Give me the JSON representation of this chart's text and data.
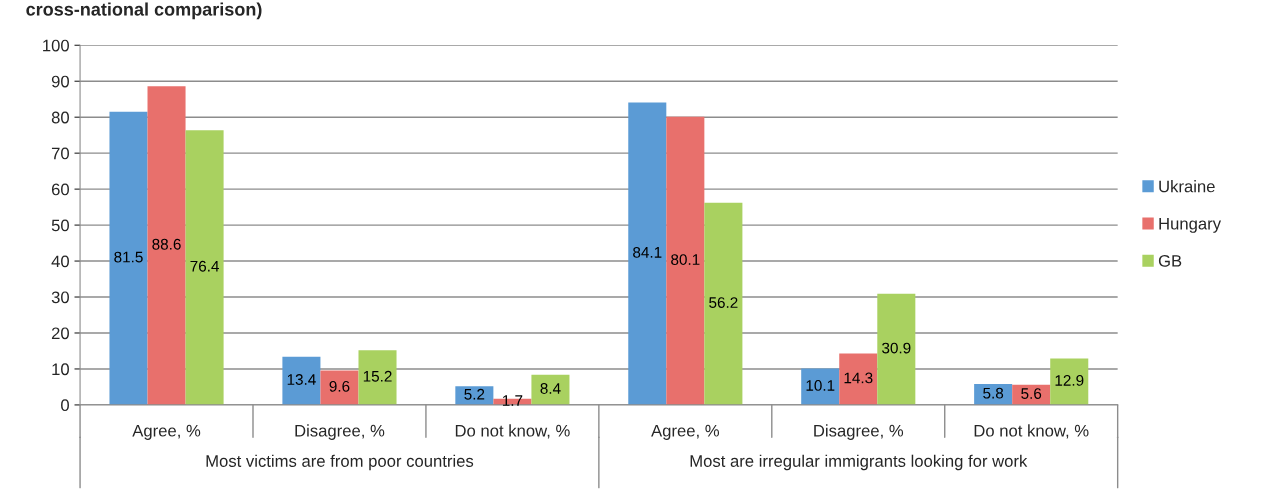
{
  "chart_data": {
    "type": "bar",
    "title": "cross-national comparison)",
    "categories": [
      "Agree, %",
      "Disagree, %",
      "Do not know, %",
      "Agree, %",
      "Disagree, %",
      "Do not know, %"
    ],
    "series": [
      {
        "name": "Ukraine",
        "color": "#5b9bd5",
        "values": [
          81.5,
          13.4,
          5.2,
          84.1,
          10.1,
          5.8
        ]
      },
      {
        "name": "Hungary",
        "color": "#e8706c",
        "values": [
          88.6,
          9.6,
          1.7,
          80.1,
          14.3,
          5.6
        ]
      },
      {
        "name": "GB",
        "color": "#a9d160",
        "values": [
          76.4,
          15.2,
          8.4,
          56.2,
          30.9,
          12.9
        ]
      }
    ],
    "annotations": [
      "Most victims are from poor countries",
      "Most are irregular immigrants looking for work"
    ],
    "ylim": [
      0,
      100
    ],
    "yticks": [
      0,
      10,
      20,
      30,
      40,
      50,
      60,
      70,
      80,
      90,
      100
    ],
    "grid": "y",
    "legend": "right",
    "data_labels": true
  }
}
